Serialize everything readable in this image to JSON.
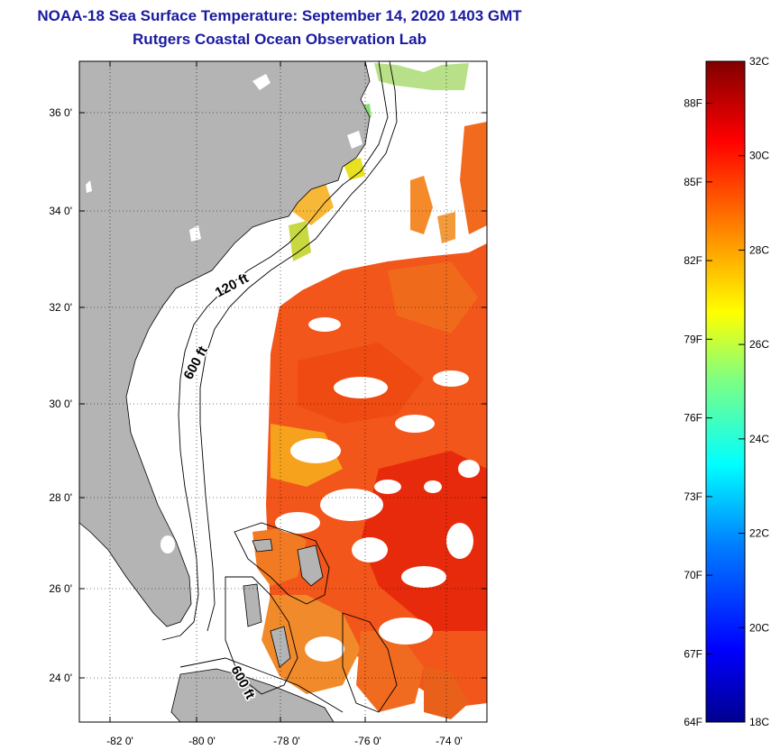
{
  "title_line1": "NOAA-18 Sea Surface Temperature:  September 14, 2020 1403 GMT",
  "title_line2": "Rutgers Coastal Ocean Observation Lab",
  "map": {
    "lon_range": [
      -83,
      -73
    ],
    "lat_range": [
      23,
      37
    ],
    "lat_ticks": [
      {
        "value": 24,
        "label": "24 0'"
      },
      {
        "value": 26,
        "label": "26 0'"
      },
      {
        "value": 28,
        "label": "28 0'"
      },
      {
        "value": 30,
        "label": "30 0'"
      },
      {
        "value": 32,
        "label": "32 0'"
      },
      {
        "value": 34,
        "label": "34 0'"
      },
      {
        "value": 36,
        "label": "36 0'"
      }
    ],
    "lon_ticks": [
      {
        "value": -82,
        "label": "-82 0'"
      },
      {
        "value": -80,
        "label": "-80 0'"
      },
      {
        "value": -78,
        "label": "-78 0'"
      },
      {
        "value": -76,
        "label": "-76 0'"
      },
      {
        "value": -74,
        "label": "-74 0'"
      }
    ],
    "contour_labels": [
      "120 ft",
      "600 ft",
      "600 ft"
    ],
    "land_color": "#b4b4b4",
    "grid": true
  },
  "colorbar": {
    "fahrenheit_labels": [
      {
        "value": 64,
        "label": "64F"
      },
      {
        "value": 67,
        "label": "67F"
      },
      {
        "value": 70,
        "label": "70F"
      },
      {
        "value": 73,
        "label": "73F"
      },
      {
        "value": 76,
        "label": "76F"
      },
      {
        "value": 79,
        "label": "79F"
      },
      {
        "value": 82,
        "label": "82F"
      },
      {
        "value": 85,
        "label": "85F"
      },
      {
        "value": 88,
        "label": "88F"
      }
    ],
    "celsius_labels": [
      {
        "value": 18,
        "label": "18C"
      },
      {
        "value": 20,
        "label": "20C"
      },
      {
        "value": 22,
        "label": "22C"
      },
      {
        "value": 24,
        "label": "24C"
      },
      {
        "value": 26,
        "label": "26C"
      },
      {
        "value": 28,
        "label": "28C"
      },
      {
        "value": 30,
        "label": "30C"
      },
      {
        "value": 32,
        "label": "32C"
      }
    ],
    "range_c": [
      18,
      32
    ],
    "range_f": [
      64,
      89.6
    ],
    "colors": [
      "#00008f",
      "#0000ff",
      "#0080ff",
      "#00ffff",
      "#80ff80",
      "#ffff00",
      "#ff8000",
      "#ff0000",
      "#800000"
    ]
  }
}
